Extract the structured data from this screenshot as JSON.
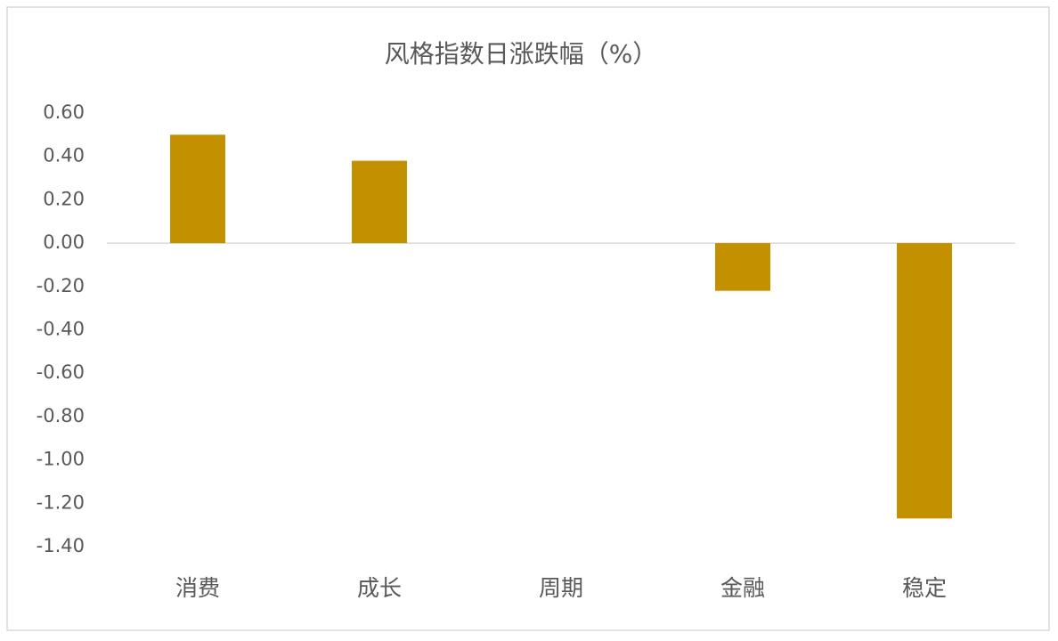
{
  "chart_data": {
    "type": "bar",
    "title": "风格指数日涨跌幅（%）",
    "categories": [
      "消费",
      "成长",
      "周期",
      "金融",
      "稳定"
    ],
    "values": [
      0.5,
      0.38,
      0.0,
      -0.22,
      -1.27
    ],
    "color": "#c39000",
    "ylim": [
      -1.4,
      0.6
    ],
    "yticks": [
      {
        "value": 0.6,
        "label": "0.60"
      },
      {
        "value": 0.4,
        "label": "0.40"
      },
      {
        "value": 0.2,
        "label": "0.20"
      },
      {
        "value": 0,
        "label": "0.00"
      },
      {
        "value": -0.2,
        "label": "-0.20"
      },
      {
        "value": -0.4,
        "label": "-0.40"
      },
      {
        "value": -0.6,
        "label": "-0.60"
      },
      {
        "value": -0.8,
        "label": "-0.80"
      },
      {
        "value": -1.0,
        "label": "-1.00"
      },
      {
        "value": -1.2,
        "label": "-1.20"
      },
      {
        "value": -1.4,
        "label": "-1.40"
      }
    ],
    "grid": false
  }
}
